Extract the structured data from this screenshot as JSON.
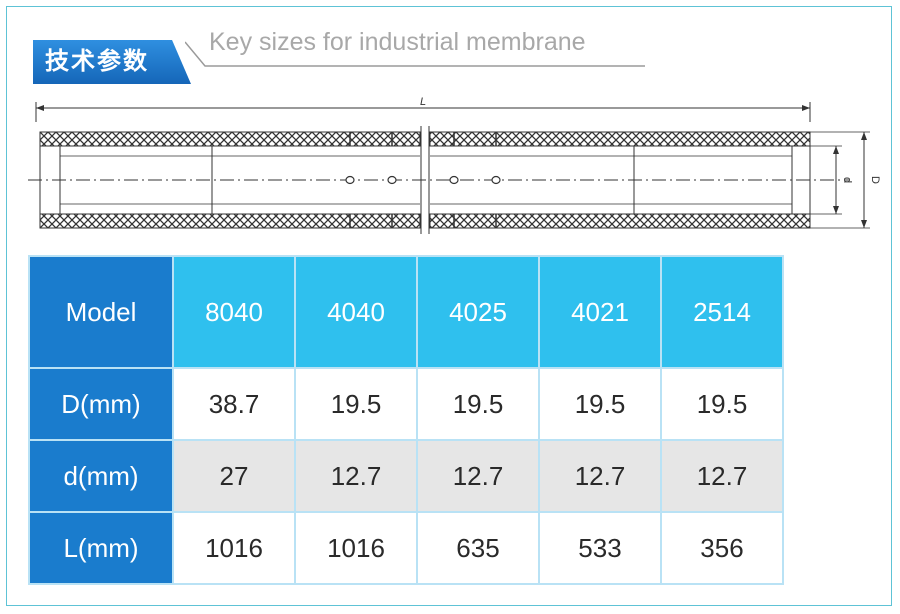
{
  "header": {
    "title_cn": "技术参数",
    "subtitle": "Key sizes for industrial membrane"
  },
  "diagram": {
    "label_length": "L",
    "label_outer": "D",
    "label_inner": "d"
  },
  "table": {
    "corner": "Model",
    "models": [
      "8040",
      "4040",
      "4025",
      "4021",
      "2514"
    ],
    "rows": [
      {
        "label": "D(mm)",
        "values": [
          "38.7",
          "19.5",
          "19.5",
          "19.5",
          "19.5"
        ]
      },
      {
        "label": "d(mm)",
        "values": [
          "27",
          "12.7",
          "12.7",
          "12.7",
          "12.7"
        ]
      },
      {
        "label": "L(mm)",
        "values": [
          "1016",
          "1016",
          "635",
          "533",
          "356"
        ]
      }
    ]
  },
  "colors": {
    "row_header": "#1a7ccd",
    "column_header": "#2fc0ee",
    "alt_row": "#e6e6e6",
    "frame": "#5ec3d6"
  }
}
